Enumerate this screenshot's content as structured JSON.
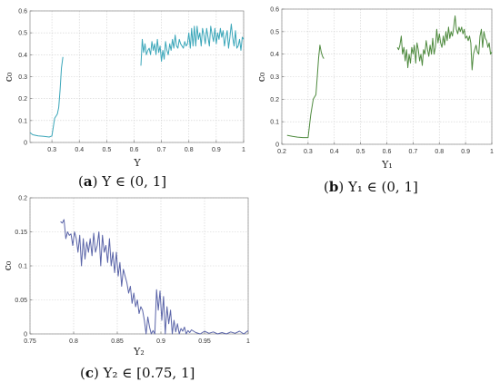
{
  "chart_data": [
    {
      "type": "line",
      "caption": {
        "letter": "a",
        "text": "Υ ∈ (0, 1]"
      },
      "xlabel": "Υ",
      "ylabel": "c₀",
      "xlim": [
        0.22,
        1.0
      ],
      "ylim": [
        0,
        0.6
      ],
      "xticks": [
        {
          "v": 0.3,
          "t": "0.3"
        },
        {
          "v": 0.4,
          "t": "0.4"
        },
        {
          "v": 0.5,
          "t": "0.5"
        },
        {
          "v": 0.6,
          "t": "0.6"
        },
        {
          "v": 0.7,
          "t": "0.7"
        },
        {
          "v": 0.8,
          "t": "0.8"
        },
        {
          "v": 0.9,
          "t": "0.9"
        },
        {
          "v": 1.0,
          "t": "1"
        }
      ],
      "yticks": [
        {
          "v": 0,
          "t": "0"
        },
        {
          "v": 0.1,
          "t": "0.1"
        },
        {
          "v": 0.2,
          "t": "0.2"
        },
        {
          "v": 0.3,
          "t": "0.3"
        },
        {
          "v": 0.4,
          "t": "0.4"
        },
        {
          "v": 0.5,
          "t": "0.5"
        },
        {
          "v": 0.6,
          "t": "0.6"
        }
      ],
      "grid": true,
      "color": "#3aa6b9",
      "segments": [
        [
          [
            0.22,
            0.045
          ],
          [
            0.23,
            0.035
          ],
          [
            0.25,
            0.03
          ],
          [
            0.27,
            0.028
          ],
          [
            0.29,
            0.025
          ],
          [
            0.3,
            0.03
          ],
          [
            0.31,
            0.11
          ],
          [
            0.315,
            0.12
          ],
          [
            0.32,
            0.13
          ],
          [
            0.325,
            0.16
          ],
          [
            0.33,
            0.24
          ],
          [
            0.335,
            0.34
          ],
          [
            0.34,
            0.39
          ]
        ],
        [
          [
            0.625,
            0.35
          ],
          [
            0.63,
            0.47
          ],
          [
            0.635,
            0.41
          ],
          [
            0.64,
            0.45
          ],
          [
            0.645,
            0.4
          ],
          [
            0.65,
            0.42
          ],
          [
            0.655,
            0.43
          ],
          [
            0.66,
            0.4
          ],
          [
            0.665,
            0.46
          ],
          [
            0.67,
            0.42
          ],
          [
            0.675,
            0.45
          ],
          [
            0.68,
            0.4
          ],
          [
            0.685,
            0.47
          ],
          [
            0.69,
            0.41
          ],
          [
            0.695,
            0.44
          ],
          [
            0.7,
            0.37
          ],
          [
            0.705,
            0.42
          ],
          [
            0.71,
            0.38
          ],
          [
            0.715,
            0.46
          ],
          [
            0.72,
            0.42
          ],
          [
            0.725,
            0.4
          ],
          [
            0.73,
            0.45
          ],
          [
            0.735,
            0.42
          ],
          [
            0.74,
            0.47
          ],
          [
            0.745,
            0.43
          ],
          [
            0.75,
            0.49
          ],
          [
            0.755,
            0.44
          ],
          [
            0.76,
            0.43
          ],
          [
            0.765,
            0.47
          ],
          [
            0.77,
            0.45
          ],
          [
            0.775,
            0.44
          ],
          [
            0.78,
            0.43
          ],
          [
            0.785,
            0.46
          ],
          [
            0.79,
            0.44
          ],
          [
            0.795,
            0.45
          ],
          [
            0.8,
            0.5
          ],
          [
            0.805,
            0.43
          ],
          [
            0.81,
            0.52
          ],
          [
            0.815,
            0.44
          ],
          [
            0.82,
            0.53
          ],
          [
            0.825,
            0.44
          ],
          [
            0.83,
            0.53
          ],
          [
            0.835,
            0.47
          ],
          [
            0.84,
            0.5
          ],
          [
            0.845,
            0.44
          ],
          [
            0.85,
            0.52
          ],
          [
            0.855,
            0.49
          ],
          [
            0.86,
            0.45
          ],
          [
            0.865,
            0.52
          ],
          [
            0.87,
            0.48
          ],
          [
            0.875,
            0.44
          ],
          [
            0.88,
            0.53
          ],
          [
            0.885,
            0.49
          ],
          [
            0.89,
            0.46
          ],
          [
            0.895,
            0.52
          ],
          [
            0.9,
            0.45
          ],
          [
            0.905,
            0.5
          ],
          [
            0.91,
            0.47
          ],
          [
            0.915,
            0.52
          ],
          [
            0.92,
            0.48
          ],
          [
            0.925,
            0.51
          ],
          [
            0.93,
            0.44
          ],
          [
            0.935,
            0.48
          ],
          [
            0.94,
            0.51
          ],
          [
            0.945,
            0.43
          ],
          [
            0.95,
            0.48
          ],
          [
            0.955,
            0.54
          ],
          [
            0.96,
            0.48
          ],
          [
            0.965,
            0.44
          ],
          [
            0.97,
            0.51
          ],
          [
            0.975,
            0.43
          ],
          [
            0.98,
            0.44
          ],
          [
            0.985,
            0.47
          ],
          [
            0.99,
            0.42
          ],
          [
            0.995,
            0.48
          ],
          [
            1.0,
            0.47
          ]
        ]
      ]
    },
    {
      "type": "line",
      "caption": {
        "letter": "b",
        "text": "Υ₁ ∈ (0, 1]"
      },
      "xlabel": "Υ₁",
      "ylabel": "c₀",
      "xlim": [
        0.2,
        1.0
      ],
      "ylim": [
        0,
        0.6
      ],
      "xticks": [
        {
          "v": 0.2,
          "t": "0.2"
        },
        {
          "v": 0.3,
          "t": "0.3"
        },
        {
          "v": 0.4,
          "t": "0.4"
        },
        {
          "v": 0.5,
          "t": "0.5"
        },
        {
          "v": 0.6,
          "t": "0.6"
        },
        {
          "v": 0.7,
          "t": "0.7"
        },
        {
          "v": 0.8,
          "t": "0.8"
        },
        {
          "v": 0.9,
          "t": "0.9"
        },
        {
          "v": 1.0,
          "t": "1"
        }
      ],
      "yticks": [
        {
          "v": 0,
          "t": "0"
        },
        {
          "v": 0.1,
          "t": "0.1"
        },
        {
          "v": 0.2,
          "t": "0.2"
        },
        {
          "v": 0.3,
          "t": "0.3"
        },
        {
          "v": 0.4,
          "t": "0.4"
        },
        {
          "v": 0.5,
          "t": "0.5"
        },
        {
          "v": 0.6,
          "t": "0.6"
        }
      ],
      "grid": true,
      "color": "#4e8a3e",
      "segments": [
        [
          [
            0.22,
            0.04
          ],
          [
            0.24,
            0.035
          ],
          [
            0.26,
            0.032
          ],
          [
            0.28,
            0.03
          ],
          [
            0.3,
            0.03
          ],
          [
            0.31,
            0.13
          ],
          [
            0.32,
            0.2
          ],
          [
            0.33,
            0.22
          ],
          [
            0.335,
            0.3
          ],
          [
            0.34,
            0.38
          ],
          [
            0.345,
            0.44
          ],
          [
            0.35,
            0.41
          ],
          [
            0.355,
            0.39
          ],
          [
            0.36,
            0.38
          ]
        ],
        [
          [
            0.64,
            0.43
          ],
          [
            0.645,
            0.42
          ],
          [
            0.65,
            0.44
          ],
          [
            0.655,
            0.48
          ],
          [
            0.66,
            0.4
          ],
          [
            0.665,
            0.43
          ],
          [
            0.67,
            0.37
          ],
          [
            0.675,
            0.42
          ],
          [
            0.68,
            0.34
          ],
          [
            0.685,
            0.4
          ],
          [
            0.69,
            0.36
          ],
          [
            0.695,
            0.43
          ],
          [
            0.7,
            0.4
          ],
          [
            0.705,
            0.44
          ],
          [
            0.71,
            0.36
          ],
          [
            0.715,
            0.45
          ],
          [
            0.72,
            0.42
          ],
          [
            0.725,
            0.37
          ],
          [
            0.73,
            0.4
          ],
          [
            0.735,
            0.35
          ],
          [
            0.74,
            0.42
          ],
          [
            0.745,
            0.4
          ],
          [
            0.75,
            0.46
          ],
          [
            0.755,
            0.42
          ],
          [
            0.76,
            0.39
          ],
          [
            0.765,
            0.44
          ],
          [
            0.77,
            0.4
          ],
          [
            0.775,
            0.47
          ],
          [
            0.78,
            0.4
          ],
          [
            0.785,
            0.43
          ],
          [
            0.79,
            0.51
          ],
          [
            0.795,
            0.45
          ],
          [
            0.8,
            0.49
          ],
          [
            0.805,
            0.45
          ],
          [
            0.81,
            0.43
          ],
          [
            0.815,
            0.48
          ],
          [
            0.82,
            0.44
          ],
          [
            0.825,
            0.5
          ],
          [
            0.83,
            0.46
          ],
          [
            0.835,
            0.52
          ],
          [
            0.84,
            0.47
          ],
          [
            0.845,
            0.5
          ],
          [
            0.85,
            0.48
          ],
          [
            0.855,
            0.52
          ],
          [
            0.86,
            0.57
          ],
          [
            0.865,
            0.51
          ],
          [
            0.87,
            0.49
          ],
          [
            0.875,
            0.52
          ],
          [
            0.88,
            0.5
          ],
          [
            0.885,
            0.52
          ],
          [
            0.89,
            0.49
          ],
          [
            0.895,
            0.51
          ],
          [
            0.9,
            0.47
          ],
          [
            0.905,
            0.48
          ],
          [
            0.91,
            0.46
          ],
          [
            0.915,
            0.48
          ],
          [
            0.92,
            0.45
          ],
          [
            0.925,
            0.33
          ],
          [
            0.93,
            0.4
          ],
          [
            0.935,
            0.42
          ],
          [
            0.94,
            0.44
          ],
          [
            0.945,
            0.41
          ],
          [
            0.95,
            0.4
          ],
          [
            0.955,
            0.48
          ],
          [
            0.96,
            0.51
          ],
          [
            0.965,
            0.43
          ],
          [
            0.97,
            0.5
          ],
          [
            0.975,
            0.47
          ],
          [
            0.98,
            0.46
          ],
          [
            0.985,
            0.43
          ],
          [
            0.99,
            0.45
          ],
          [
            0.995,
            0.4
          ],
          [
            1.0,
            0.41
          ]
        ]
      ]
    },
    {
      "type": "line",
      "caption": {
        "letter": "c",
        "text": "Υ₂ ∈ [0.75, 1]"
      },
      "xlabel": "Υ₂",
      "ylabel": "c₀",
      "xlim": [
        0.75,
        1.0
      ],
      "ylim": [
        0,
        0.2
      ],
      "xticks": [
        {
          "v": 0.75,
          "t": "0.75"
        },
        {
          "v": 0.8,
          "t": "0.8"
        },
        {
          "v": 0.85,
          "t": "0.85"
        },
        {
          "v": 0.9,
          "t": "0.9"
        },
        {
          "v": 0.95,
          "t": "0.95"
        },
        {
          "v": 1.0,
          "t": "1"
        }
      ],
      "yticks": [
        {
          "v": 0,
          "t": "0"
        },
        {
          "v": 0.05,
          "t": "0.05"
        },
        {
          "v": 0.1,
          "t": "0.1"
        },
        {
          "v": 0.15,
          "t": "0.15"
        },
        {
          "v": 0.2,
          "t": "0.2"
        }
      ],
      "grid": true,
      "color": "#5a64a8",
      "segments": [
        [
          [
            0.785,
            0.165
          ],
          [
            0.787,
            0.163
          ],
          [
            0.789,
            0.168
          ],
          [
            0.791,
            0.14
          ],
          [
            0.793,
            0.15
          ],
          [
            0.795,
            0.145
          ],
          [
            0.797,
            0.147
          ],
          [
            0.799,
            0.13
          ],
          [
            0.801,
            0.15
          ],
          [
            0.803,
            0.14
          ],
          [
            0.805,
            0.12
          ],
          [
            0.807,
            0.145
          ],
          [
            0.809,
            0.1
          ],
          [
            0.811,
            0.14
          ],
          [
            0.813,
            0.11
          ],
          [
            0.815,
            0.135
          ],
          [
            0.817,
            0.12
          ],
          [
            0.819,
            0.14
          ],
          [
            0.821,
            0.115
          ],
          [
            0.823,
            0.148
          ],
          [
            0.825,
            0.12
          ],
          [
            0.827,
            0.13
          ],
          [
            0.829,
            0.15
          ],
          [
            0.831,
            0.1
          ],
          [
            0.833,
            0.145
          ],
          [
            0.835,
            0.12
          ],
          [
            0.837,
            0.13
          ],
          [
            0.839,
            0.105
          ],
          [
            0.841,
            0.14
          ],
          [
            0.843,
            0.1
          ],
          [
            0.845,
            0.12
          ],
          [
            0.847,
            0.09
          ],
          [
            0.849,
            0.12
          ],
          [
            0.851,
            0.085
          ],
          [
            0.853,
            0.105
          ],
          [
            0.855,
            0.07
          ],
          [
            0.857,
            0.095
          ],
          [
            0.859,
            0.085
          ],
          [
            0.861,
            0.075
          ],
          [
            0.863,
            0.06
          ],
          [
            0.865,
            0.07
          ],
          [
            0.867,
            0.045
          ],
          [
            0.869,
            0.06
          ],
          [
            0.871,
            0.04
          ],
          [
            0.873,
            0.05
          ],
          [
            0.875,
            0.03
          ],
          [
            0.877,
            0.04
          ],
          [
            0.879,
            0.035
          ],
          [
            0.881,
            0.02
          ],
          [
            0.883,
            0.0
          ],
          [
            0.885,
            0.025
          ],
          [
            0.887,
            0.01
          ],
          [
            0.889,
            0.0
          ],
          [
            0.891,
            0.005
          ],
          [
            0.893,
            0.0
          ],
          [
            0.895,
            0.065
          ],
          [
            0.897,
            0.035
          ],
          [
            0.899,
            0.063
          ],
          [
            0.901,
            0.02
          ],
          [
            0.903,
            0.055
          ],
          [
            0.905,
            0.0
          ],
          [
            0.907,
            0.04
          ],
          [
            0.909,
            0.015
          ],
          [
            0.911,
            0.035
          ],
          [
            0.913,
            0.0
          ],
          [
            0.915,
            0.02
          ],
          [
            0.917,
            0.003
          ],
          [
            0.919,
            0.015
          ],
          [
            0.921,
            0.0
          ],
          [
            0.923,
            0.008
          ],
          [
            0.925,
            0.004
          ],
          [
            0.927,
            0.01
          ],
          [
            0.929,
            0.0
          ],
          [
            0.931,
            0.005
          ],
          [
            0.933,
            0.002
          ],
          [
            0.935,
            0.006
          ],
          [
            0.94,
            0.002
          ],
          [
            0.945,
            0.0
          ],
          [
            0.95,
            0.004
          ],
          [
            0.955,
            0.001
          ],
          [
            0.96,
            0.003
          ],
          [
            0.965,
            0.0
          ],
          [
            0.97,
            0.002
          ],
          [
            0.975,
            0.0
          ],
          [
            0.98,
            0.003
          ],
          [
            0.985,
            0.001
          ],
          [
            0.99,
            0.004
          ],
          [
            0.995,
            0.0
          ],
          [
            1.0,
            0.005
          ]
        ]
      ]
    }
  ]
}
